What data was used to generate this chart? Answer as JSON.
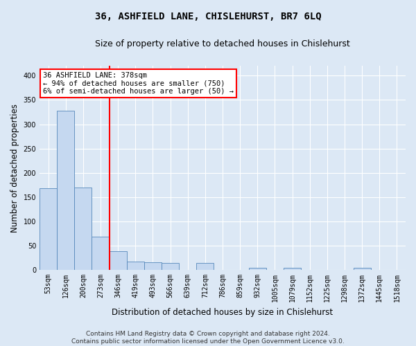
{
  "title": "36, ASHFIELD LANE, CHISLEHURST, BR7 6LQ",
  "subtitle": "Size of property relative to detached houses in Chislehurst",
  "xlabel": "Distribution of detached houses by size in Chislehurst",
  "ylabel": "Number of detached properties",
  "bins": [
    "53sqm",
    "126sqm",
    "200sqm",
    "273sqm",
    "346sqm",
    "419sqm",
    "493sqm",
    "566sqm",
    "639sqm",
    "712sqm",
    "786sqm",
    "859sqm",
    "932sqm",
    "1005sqm",
    "1079sqm",
    "1152sqm",
    "1225sqm",
    "1298sqm",
    "1372sqm",
    "1445sqm",
    "1518sqm"
  ],
  "counts": [
    168,
    328,
    170,
    68,
    38,
    18,
    16,
    14,
    0,
    14,
    0,
    0,
    5,
    0,
    5,
    0,
    0,
    0,
    5,
    0,
    0
  ],
  "bar_color": "#c5d8f0",
  "bar_edge_color": "#5588bb",
  "vline_pos": 3.5,
  "vline_color": "red",
  "annotation_text": "36 ASHFIELD LANE: 378sqm\n← 94% of detached houses are smaller (750)\n6% of semi-detached houses are larger (50) →",
  "annotation_box_facecolor": "white",
  "annotation_box_edgecolor": "red",
  "ylim_max": 420,
  "yticks": [
    0,
    50,
    100,
    150,
    200,
    250,
    300,
    350,
    400
  ],
  "footer": "Contains HM Land Registry data © Crown copyright and database right 2024.\nContains public sector information licensed under the Open Government Licence v3.0.",
  "bg_color": "#dce8f5",
  "title_fontsize": 10,
  "subtitle_fontsize": 9,
  "axis_label_fontsize": 8.5,
  "tick_fontsize": 7,
  "footer_fontsize": 6.5
}
